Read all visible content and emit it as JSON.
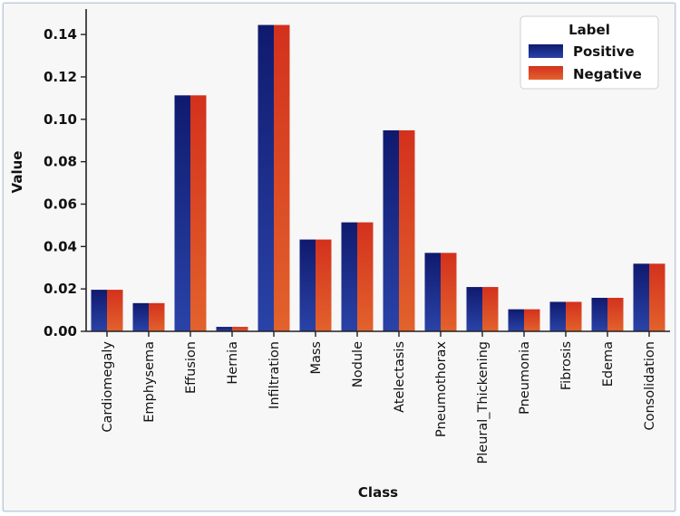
{
  "chart_data": {
    "type": "bar",
    "title": "",
    "xlabel": "Class",
    "ylabel": "Value",
    "ylim": [
      0,
      0.152
    ],
    "yticks": [
      "0.00",
      "0.02",
      "0.04",
      "0.06",
      "0.08",
      "0.10",
      "0.12",
      "0.14"
    ],
    "grid": false,
    "legend": {
      "title": "Label",
      "position": "top-right"
    },
    "categories": [
      "Cardiomegaly",
      "Emphysema",
      "Effusion",
      "Hernia",
      "Infiltration",
      "Mass",
      "Nodule",
      "Atelectasis",
      "Pneumothorax",
      "Pleural_Thickening",
      "Pneumonia",
      "Fibrosis",
      "Edema",
      "Consolidation"
    ],
    "series": [
      {
        "name": "Positive",
        "color": "#1b2a80",
        "values": [
          0.0196,
          0.0133,
          0.1113,
          0.0021,
          0.1445,
          0.0433,
          0.0514,
          0.0948,
          0.037,
          0.0209,
          0.0104,
          0.0139,
          0.0158,
          0.0319
        ]
      },
      {
        "name": "Negative",
        "color": "#d93a22",
        "values": [
          0.0196,
          0.0133,
          0.1113,
          0.0021,
          0.1445,
          0.0433,
          0.0514,
          0.0948,
          0.037,
          0.0209,
          0.0104,
          0.0139,
          0.0158,
          0.0319
        ]
      }
    ]
  }
}
